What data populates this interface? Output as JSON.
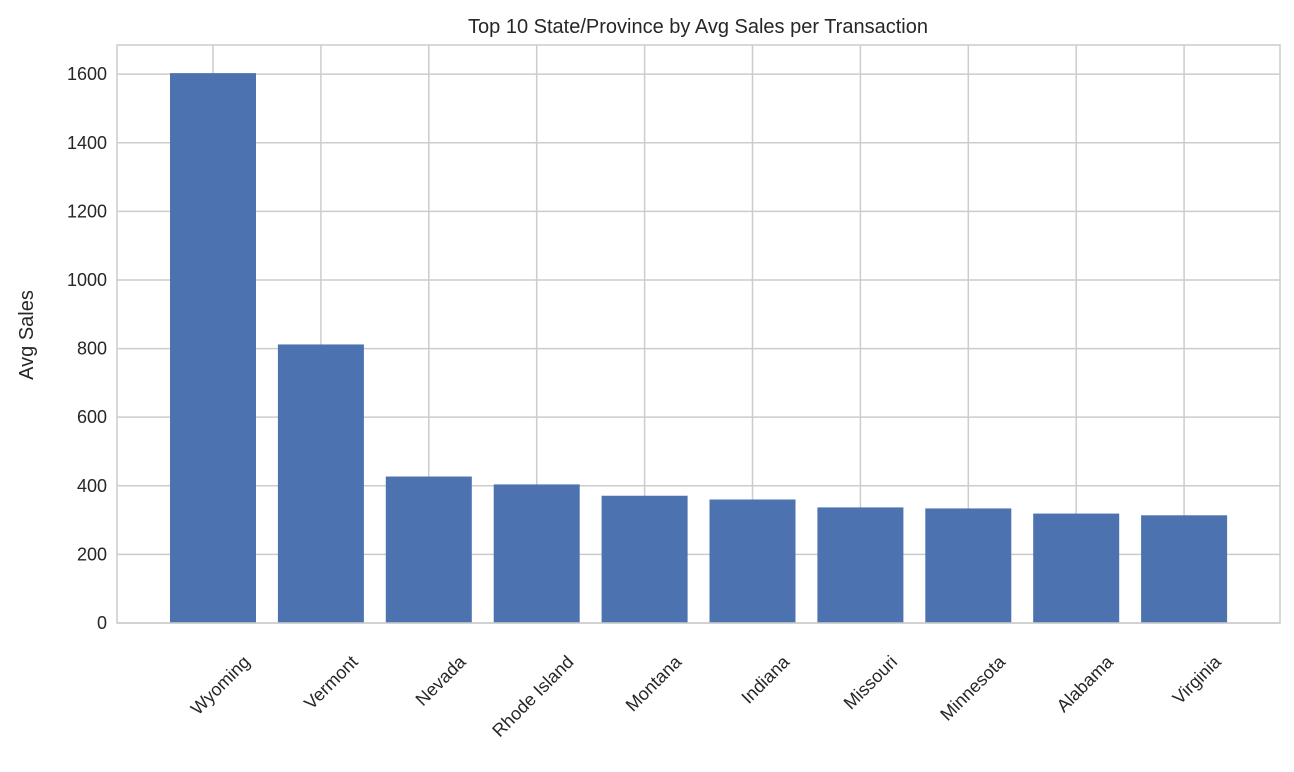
{
  "chart_data": {
    "type": "bar",
    "title": "Top 10 State/Province by Avg Sales per Transaction",
    "xlabel": "",
    "ylabel": "Avg Sales",
    "categories": [
      "Wyoming",
      "Vermont",
      "Nevada",
      "Rhode Island",
      "Montana",
      "Indiana",
      "Missouri",
      "Minnesota",
      "Alabama",
      "Virginia"
    ],
    "values": [
      1603,
      812,
      427,
      404,
      371,
      360,
      337,
      334,
      319,
      314
    ],
    "ylim": [
      0,
      1685
    ],
    "yticks": [
      0,
      200,
      400,
      600,
      800,
      1000,
      1200,
      1400,
      1600
    ],
    "grid": true,
    "bar_color": "#4c72b0",
    "grid_color": "#cccccc",
    "axes_edge_color": "#cccccc",
    "text_color": "#262626",
    "x_tick_rotation": -45
  }
}
